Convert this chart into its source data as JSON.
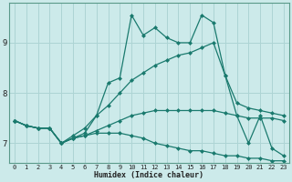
{
  "xlabel": "Humidex (Indice chaleur)",
  "xlim": [
    -0.5,
    23.5
  ],
  "ylim": [
    6.6,
    9.8
  ],
  "background_color": "#cceaea",
  "grid_color": "#add4d4",
  "line_color": "#1a7a6e",
  "xticks": [
    0,
    1,
    2,
    3,
    4,
    5,
    6,
    7,
    8,
    9,
    10,
    11,
    12,
    13,
    14,
    15,
    16,
    17,
    18,
    19,
    20,
    21,
    22,
    23
  ],
  "yticks": [
    7,
    8,
    9
  ],
  "lines": [
    {
      "x": [
        0,
        1,
        2,
        3,
        4,
        5,
        6,
        7,
        8,
        9,
        10,
        11,
        12,
        13,
        14,
        15,
        16,
        17,
        18,
        19,
        20,
        21,
        22,
        23
      ],
      "y": [
        7.45,
        7.35,
        7.3,
        7.3,
        7.0,
        7.1,
        7.2,
        7.55,
        8.2,
        8.3,
        9.55,
        9.15,
        9.3,
        9.1,
        9.0,
        9.0,
        9.55,
        9.4,
        8.35,
        7.55,
        7.0,
        7.55,
        6.9,
        6.75
      ]
    },
    {
      "x": [
        0,
        1,
        2,
        3,
        4,
        5,
        6,
        7,
        8,
        9,
        10,
        11,
        12,
        13,
        14,
        15,
        16,
        17,
        18,
        19,
        20,
        21,
        22,
        23
      ],
      "y": [
        7.45,
        7.35,
        7.3,
        7.3,
        7.0,
        7.15,
        7.3,
        7.55,
        7.75,
        8.0,
        8.25,
        8.4,
        8.55,
        8.65,
        8.75,
        8.8,
        8.9,
        9.0,
        8.35,
        7.8,
        7.7,
        7.65,
        7.6,
        7.55
      ]
    },
    {
      "x": [
        0,
        1,
        2,
        3,
        4,
        5,
        6,
        7,
        8,
        9,
        10,
        11,
        12,
        13,
        14,
        15,
        16,
        17,
        18,
        19,
        20,
        21,
        22,
        23
      ],
      "y": [
        7.45,
        7.35,
        7.3,
        7.3,
        7.0,
        7.1,
        7.15,
        7.25,
        7.35,
        7.45,
        7.55,
        7.6,
        7.65,
        7.65,
        7.65,
        7.65,
        7.65,
        7.65,
        7.6,
        7.55,
        7.5,
        7.5,
        7.5,
        7.45
      ]
    },
    {
      "x": [
        0,
        1,
        2,
        3,
        4,
        5,
        6,
        7,
        8,
        9,
        10,
        11,
        12,
        13,
        14,
        15,
        16,
        17,
        18,
        19,
        20,
        21,
        22,
        23
      ],
      "y": [
        7.45,
        7.35,
        7.3,
        7.3,
        7.0,
        7.1,
        7.15,
        7.2,
        7.2,
        7.2,
        7.15,
        7.1,
        7.0,
        6.95,
        6.9,
        6.85,
        6.85,
        6.8,
        6.75,
        6.75,
        6.7,
        6.7,
        6.65,
        6.65
      ]
    }
  ],
  "marker": "D",
  "markersize": 2.0,
  "linewidth": 0.9
}
